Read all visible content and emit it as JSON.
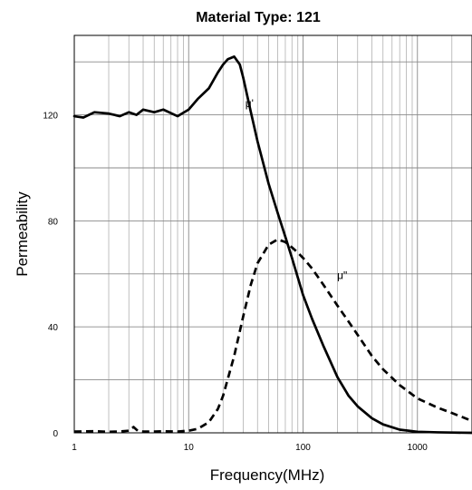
{
  "chart_data": {
    "type": "line",
    "title": "Material Type: 121",
    "xlabel": "Frequency(MHz)",
    "ylabel": "Permeability",
    "x_scale": "log",
    "xlim": [
      1,
      3000
    ],
    "ylim": [
      0,
      150
    ],
    "grid": true,
    "legend": "none",
    "x_tick_labels": [
      "1",
      "10",
      "100",
      "1000"
    ],
    "y_tick_labels": [
      "0",
      "40",
      "80",
      "120"
    ],
    "x_ticks": [
      1,
      10,
      100,
      1000
    ],
    "y_ticks": [
      0,
      40,
      80,
      120
    ],
    "series": [
      {
        "name": "μ'",
        "style": "solid",
        "color": "#000000",
        "x": [
          1.0,
          1.2,
          1.5,
          2.0,
          2.5,
          3.0,
          3.5,
          4.0,
          5.0,
          6.0,
          8.0,
          10.0,
          12.0,
          15.0,
          18.0,
          20.0,
          22.0,
          25.0,
          28.0,
          30.0,
          35.0,
          40.0,
          50.0,
          60.0,
          70.0,
          80.0,
          100.0,
          120.0,
          150.0,
          200.0,
          250.0,
          300.0,
          400.0,
          500.0,
          700.0,
          1000.0,
          1500.0,
          2000.0,
          3000.0
        ],
        "y": [
          119.5,
          119.0,
          121.0,
          120.5,
          119.5,
          121.0,
          120.0,
          122.0,
          121.0,
          122.0,
          119.5,
          122.0,
          126.0,
          130.0,
          136.0,
          139.0,
          141.0,
          142.0,
          139.0,
          134.0,
          121.0,
          110.0,
          94.0,
          83.0,
          74.0,
          66.0,
          52.0,
          43.0,
          33.0,
          21.0,
          14.0,
          10.0,
          5.5,
          3.2,
          1.2,
          0.4,
          0.2,
          0.1,
          0.0
        ]
      },
      {
        "name": "μ\"",
        "style": "dashed",
        "color": "#000000",
        "x": [
          1.0,
          1.5,
          2.0,
          2.5,
          3.0,
          3.3,
          3.6,
          4.0,
          5.0,
          6.0,
          8.0,
          10.0,
          12.0,
          15.0,
          18.0,
          20.0,
          25.0,
          30.0,
          35.0,
          40.0,
          50.0,
          60.0,
          70.0,
          80.0,
          90.0,
          100.0,
          120.0,
          150.0,
          200.0,
          250.0,
          300.0,
          400.0,
          500.0,
          700.0,
          1000.0,
          1500.0,
          2000.0,
          3000.0
        ],
        "y": [
          0.5,
          0.6,
          0.4,
          0.5,
          0.8,
          2.2,
          0.7,
          0.5,
          0.5,
          0.6,
          0.5,
          0.8,
          1.5,
          4.0,
          9.0,
          14.0,
          29.0,
          44.0,
          56.0,
          64.0,
          71.0,
          73.0,
          72.0,
          70.0,
          68.0,
          66.0,
          62.0,
          56.0,
          48.0,
          42.0,
          37.0,
          29.0,
          24.0,
          18.0,
          13.0,
          9.5,
          7.5,
          4.5
        ]
      }
    ],
    "annotations": [
      {
        "text": "μ'",
        "x": 34,
        "y": 123
      },
      {
        "text": "μ\"",
        "x": 220,
        "y": 58
      }
    ]
  }
}
